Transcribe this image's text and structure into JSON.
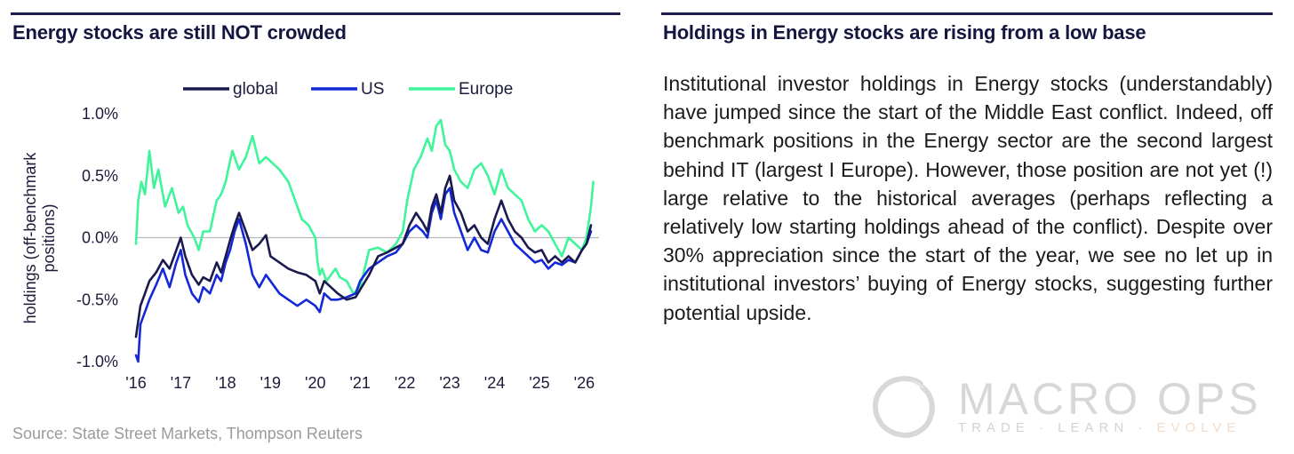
{
  "left_panel": {
    "title": "Energy stocks are still NOT crowded",
    "source": "Source: State Street Markets, Thompson Reuters"
  },
  "right_panel": {
    "title": "Holdings in Energy stocks are rising from a low base",
    "body": "Institutional investor holdings in Energy stocks (understandably) have jumped since the start of the Middle East conflict.  Indeed, off benchmark positions in the Energy sector are the second largest behind IT (largest I Europe).  However, those position are not yet (!) large relative to the historical averages (perhaps reflecting a relatively low starting holdings ahead of the conflict). Despite over 30% appreciation since the start of the year, we see no let up in institutional investors’ buying of Energy stocks, suggesting further potential upside."
  },
  "logo": {
    "name": "MACRO OPS",
    "tag_prefix": "TRADE · LEARN · ",
    "tag_evolve": "EVOLVE",
    "icon": "enso-circle-icon"
  },
  "colors": {
    "rule": "#1c1c4e",
    "global": "#1a1a4e",
    "us": "#1428d8",
    "europe": "#3ef59a"
  },
  "chart_data": {
    "type": "line",
    "title": "Energy stocks are still NOT crowded",
    "xlabel": "",
    "ylabel": "holdings (off-benchmark positions)",
    "ylim": [
      -1.0,
      1.0
    ],
    "xlim": [
      2016.0,
      2026.25
    ],
    "yticks": [
      "1.0%",
      "0.5%",
      "0.0%",
      "-0.5%",
      "-1.0%"
    ],
    "yticks_values": [
      1.0,
      0.5,
      0.0,
      -0.5,
      -1.0
    ],
    "xticks": [
      "'16",
      "'17",
      "'18",
      "'19",
      "'20",
      "'21",
      "'22",
      "'23",
      "'24",
      "'25",
      "'26"
    ],
    "xticks_values": [
      2016,
      2017,
      2018,
      2019,
      2020,
      2021,
      2022,
      2023,
      2024,
      2025,
      2026
    ],
    "legend_position": "top",
    "series": [
      {
        "name": "global",
        "x": [
          2016.0,
          2016.1,
          2016.2,
          2016.3,
          2016.45,
          2016.6,
          2016.75,
          2016.9,
          2017.0,
          2017.1,
          2017.25,
          2017.4,
          2017.5,
          2017.65,
          2017.8,
          2017.9,
          2018.0,
          2018.1,
          2018.2,
          2018.3,
          2018.45,
          2018.6,
          2018.75,
          2018.9,
          2019.0,
          2019.2,
          2019.4,
          2019.6,
          2019.8,
          2020.0,
          2020.1,
          2020.2,
          2020.35,
          2020.5,
          2020.7,
          2020.9,
          2021.0,
          2021.2,
          2021.4,
          2021.6,
          2021.8,
          2021.95,
          2022.1,
          2022.25,
          2022.4,
          2022.5,
          2022.6,
          2022.7,
          2022.8,
          2022.9,
          2023.0,
          2023.1,
          2023.25,
          2023.4,
          2023.55,
          2023.7,
          2023.85,
          2024.0,
          2024.15,
          2024.3,
          2024.45,
          2024.6,
          2024.75,
          2024.9,
          2025.05,
          2025.2,
          2025.35,
          2025.5,
          2025.65,
          2025.8,
          2025.95,
          2026.05,
          2026.15
        ],
        "values": [
          -0.8,
          -0.55,
          -0.45,
          -0.35,
          -0.28,
          -0.18,
          -0.25,
          -0.1,
          0.0,
          -0.15,
          -0.3,
          -0.38,
          -0.32,
          -0.35,
          -0.2,
          -0.28,
          -0.15,
          -0.02,
          0.1,
          0.2,
          0.05,
          -0.1,
          -0.05,
          0.02,
          -0.15,
          -0.2,
          -0.25,
          -0.28,
          -0.3,
          -0.35,
          -0.45,
          -0.35,
          -0.4,
          -0.45,
          -0.5,
          -0.48,
          -0.42,
          -0.3,
          -0.15,
          -0.12,
          -0.08,
          -0.05,
          0.1,
          0.2,
          0.12,
          0.05,
          0.25,
          0.35,
          0.2,
          0.4,
          0.5,
          0.3,
          0.2,
          0.05,
          0.1,
          0.0,
          -0.05,
          0.15,
          0.3,
          0.15,
          0.05,
          0.0,
          -0.08,
          -0.12,
          -0.1,
          -0.2,
          -0.15,
          -0.2,
          -0.15,
          -0.2,
          -0.1,
          -0.05,
          0.1
        ]
      },
      {
        "name": "US",
        "x": [
          2016.0,
          2016.05,
          2016.1,
          2016.2,
          2016.3,
          2016.45,
          2016.6,
          2016.75,
          2016.9,
          2017.0,
          2017.1,
          2017.25,
          2017.4,
          2017.5,
          2017.65,
          2017.8,
          2017.9,
          2018.0,
          2018.1,
          2018.2,
          2018.3,
          2018.45,
          2018.6,
          2018.75,
          2018.9,
          2019.0,
          2019.2,
          2019.4,
          2019.6,
          2019.8,
          2020.0,
          2020.1,
          2020.2,
          2020.35,
          2020.5,
          2020.7,
          2020.9,
          2021.0,
          2021.2,
          2021.4,
          2021.6,
          2021.8,
          2021.95,
          2022.1,
          2022.25,
          2022.4,
          2022.5,
          2022.6,
          2022.7,
          2022.8,
          2022.9,
          2023.0,
          2023.1,
          2023.25,
          2023.4,
          2023.55,
          2023.7,
          2023.85,
          2024.0,
          2024.15,
          2024.3,
          2024.45,
          2024.6,
          2024.75,
          2024.9,
          2025.05,
          2025.2,
          2025.35,
          2025.5,
          2025.65,
          2025.8,
          2025.95,
          2026.05,
          2026.15
        ],
        "values": [
          -0.95,
          -1.0,
          -0.7,
          -0.6,
          -0.5,
          -0.38,
          -0.25,
          -0.4,
          -0.2,
          -0.1,
          -0.3,
          -0.45,
          -0.52,
          -0.4,
          -0.45,
          -0.3,
          -0.35,
          -0.2,
          -0.1,
          0.05,
          0.15,
          -0.05,
          -0.3,
          -0.4,
          -0.3,
          -0.35,
          -0.45,
          -0.5,
          -0.55,
          -0.5,
          -0.55,
          -0.6,
          -0.45,
          -0.5,
          -0.5,
          -0.48,
          -0.45,
          -0.35,
          -0.25,
          -0.2,
          -0.15,
          -0.12,
          -0.05,
          0.05,
          0.1,
          0.05,
          0.0,
          0.2,
          0.3,
          0.15,
          0.35,
          0.4,
          0.2,
          0.05,
          -0.1,
          0.0,
          -0.1,
          -0.12,
          0.05,
          0.15,
          0.05,
          -0.05,
          -0.1,
          -0.15,
          -0.2,
          -0.18,
          -0.25,
          -0.2,
          -0.22,
          -0.18,
          -0.2,
          -0.1,
          -0.05,
          0.05
        ]
      },
      {
        "name": "Europe",
        "x": [
          2016.0,
          2016.05,
          2016.12,
          2016.2,
          2016.3,
          2016.4,
          2016.5,
          2016.65,
          2016.8,
          2016.95,
          2017.05,
          2017.15,
          2017.3,
          2017.4,
          2017.5,
          2017.65,
          2017.8,
          2017.9,
          2018.0,
          2018.15,
          2018.3,
          2018.45,
          2018.6,
          2018.75,
          2018.9,
          2019.05,
          2019.2,
          2019.4,
          2019.55,
          2019.7,
          2019.85,
          2020.0,
          2020.05,
          2020.1,
          2020.15,
          2020.25,
          2020.35,
          2020.45,
          2020.55,
          2020.7,
          2020.85,
          2021.0,
          2021.2,
          2021.4,
          2021.6,
          2021.8,
          2021.95,
          2022.05,
          2022.2,
          2022.35,
          2022.5,
          2022.6,
          2022.7,
          2022.8,
          2022.9,
          2023.0,
          2023.1,
          2023.25,
          2023.4,
          2023.55,
          2023.7,
          2023.85,
          2024.0,
          2024.15,
          2024.3,
          2024.45,
          2024.6,
          2024.75,
          2024.9,
          2025.05,
          2025.2,
          2025.35,
          2025.5,
          2025.65,
          2025.8,
          2025.95,
          2026.05,
          2026.15,
          2026.2
        ],
        "values": [
          -0.05,
          0.3,
          0.45,
          0.35,
          0.7,
          0.4,
          0.55,
          0.25,
          0.4,
          0.2,
          0.25,
          0.1,
          0.0,
          -0.1,
          0.05,
          0.05,
          0.3,
          0.35,
          0.45,
          0.7,
          0.55,
          0.65,
          0.82,
          0.6,
          0.65,
          0.6,
          0.55,
          0.45,
          0.3,
          0.15,
          0.1,
          0.0,
          -0.2,
          -0.3,
          -0.25,
          -0.35,
          -0.3,
          -0.25,
          -0.32,
          -0.35,
          -0.45,
          -0.4,
          -0.1,
          -0.08,
          -0.12,
          -0.05,
          0.05,
          0.3,
          0.55,
          0.65,
          0.8,
          0.7,
          0.9,
          0.95,
          0.75,
          0.7,
          0.55,
          0.45,
          0.4,
          0.55,
          0.6,
          0.5,
          0.35,
          0.55,
          0.4,
          0.35,
          0.3,
          0.15,
          0.05,
          0.1,
          0.05,
          -0.05,
          -0.15,
          0.0,
          -0.05,
          -0.1,
          0.0,
          0.25,
          0.45
        ]
      }
    ]
  }
}
